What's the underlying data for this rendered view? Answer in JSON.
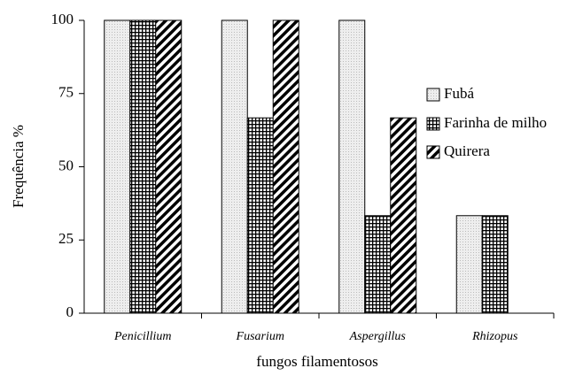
{
  "chart_data": {
    "type": "bar",
    "x_label": "fungos filamentosos",
    "y_label": "Frequência %",
    "categories": [
      "Penicillium",
      "Fusarium",
      "Aspergillus",
      "Rhizopus"
    ],
    "series": [
      {
        "name": "Fubá",
        "color": "#e8e8e8",
        "pattern": "dots",
        "values": [
          100,
          100,
          100,
          33.3
        ]
      },
      {
        "name": "Farinha de milho",
        "color": "#000000",
        "pattern": "grid",
        "values": [
          100,
          66.7,
          33.3,
          33.3
        ]
      },
      {
        "name": "Quirera",
        "color": "#000000",
        "pattern": "diagonal",
        "values": [
          100,
          100,
          66.7,
          0
        ]
      }
    ],
    "ylim": [
      0,
      100
    ],
    "yticks": [
      0,
      25,
      50,
      75,
      100
    ],
    "grid": false,
    "legend": "right"
  }
}
